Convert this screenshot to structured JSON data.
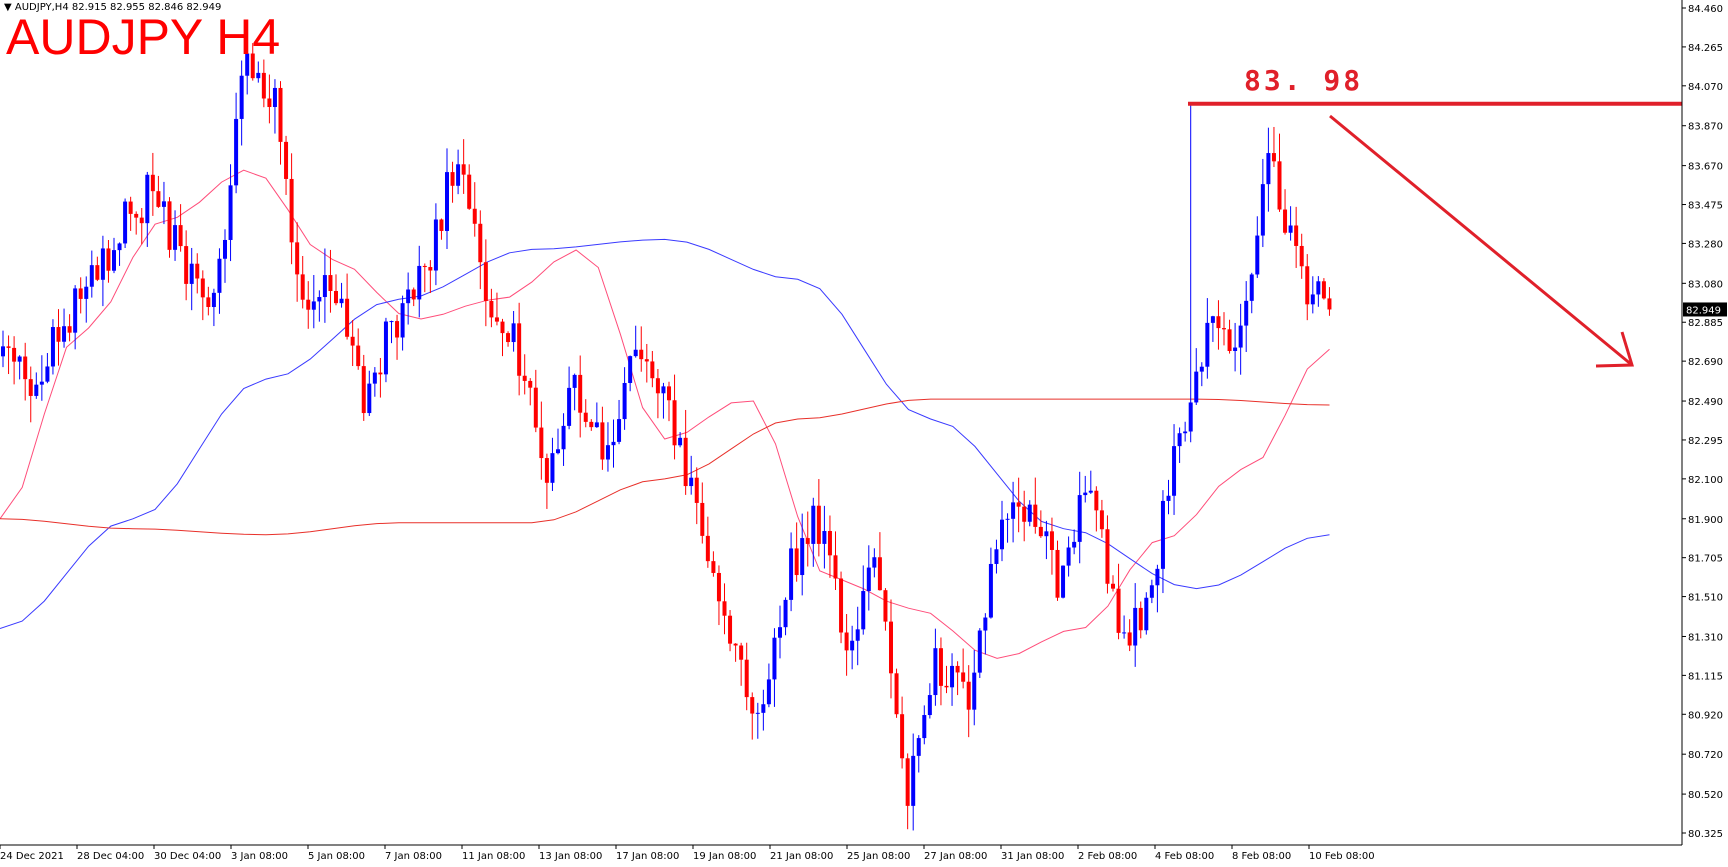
{
  "header": {
    "symbol_info": "AUDJPY,H4",
    "ohlc_info": "82.915 82.955 82.846 82.949",
    "title_overlay": "AUDJPY H4"
  },
  "annotations": {
    "resistance_label": "83. 98",
    "resistance_value": 83.98,
    "current_price_tag": "82.949"
  },
  "colors": {
    "bull": "#0000ff",
    "bear": "#ff0000",
    "ma_fast": "#ff4d7a",
    "ma_mid": "#3a3aff",
    "ma_slow": "#e8302a",
    "annotation": "#e0202a"
  },
  "chart_data": {
    "type": "candlestick",
    "symbol": "AUDJPY",
    "timeframe": "H4",
    "y_ticks": [
      "84.460",
      "84.265",
      "84.070",
      "83.870",
      "83.670",
      "83.475",
      "83.280",
      "83.080",
      "82.885",
      "82.690",
      "82.490",
      "82.295",
      "82.100",
      "81.900",
      "81.705",
      "81.510",
      "81.310",
      "81.115",
      "80.920",
      "80.720",
      "80.520",
      "80.325"
    ],
    "ylim": [
      80.25,
      84.46
    ],
    "x_labels": [
      "24 Dec 2021",
      "28 Dec 04:00",
      "30 Dec 04:00",
      "3 Jan 08:00",
      "5 Jan 08:00",
      "7 Jan 08:00",
      "11 Jan 08:00",
      "13 Jan 08:00",
      "17 Jan 08:00",
      "19 Jan 08:00",
      "21 Jan 08:00",
      "25 Jan 08:00",
      "27 Jan 08:00",
      "31 Jan 08:00",
      "2 Feb 08:00",
      "4 Feb 08:00",
      "8 Feb 08:00",
      "10 Feb 08:00"
    ],
    "key_points": [
      82.73,
      82.6,
      82.85,
      83.1,
      83.4,
      83.55,
      83.15,
      82.95,
      84.2,
      84.0,
      82.85,
      83.1,
      82.5,
      82.9,
      83.1,
      83.7,
      83.05,
      82.8,
      82.1,
      82.6,
      82.2,
      82.75,
      82.5,
      81.9,
      81.35,
      80.85,
      81.6,
      81.9,
      81.25,
      81.7,
      80.5,
      81.2,
      80.95,
      81.8,
      82.0,
      81.6,
      82.1,
      81.3,
      81.5,
      82.3,
      82.9,
      82.8,
      83.7,
      83.1,
      82.95
    ],
    "moving_averages": [
      {
        "color": "#ff4d7a",
        "points": [
          81.9,
          82.85,
          83.4,
          83.65,
          83.2,
          82.9,
          83.0,
          83.25,
          82.3,
          82.5,
          81.6,
          81.45,
          81.2,
          81.35,
          81.8,
          82.15,
          82.75
        ]
      },
      {
        "color": "#3a3aff",
        "points": [
          81.35,
          81.9,
          82.6,
          83.0,
          83.25,
          83.3,
          83.1,
          82.4,
          81.85,
          81.55,
          81.82
        ]
      },
      {
        "color": "#e8302a",
        "points": [
          81.9,
          81.85,
          81.82,
          81.88,
          81.88,
          82.1,
          82.4,
          82.5,
          82.5,
          82.5,
          82.47
        ]
      }
    ],
    "last_price": 82.949,
    "resistance_level": 83.98
  }
}
